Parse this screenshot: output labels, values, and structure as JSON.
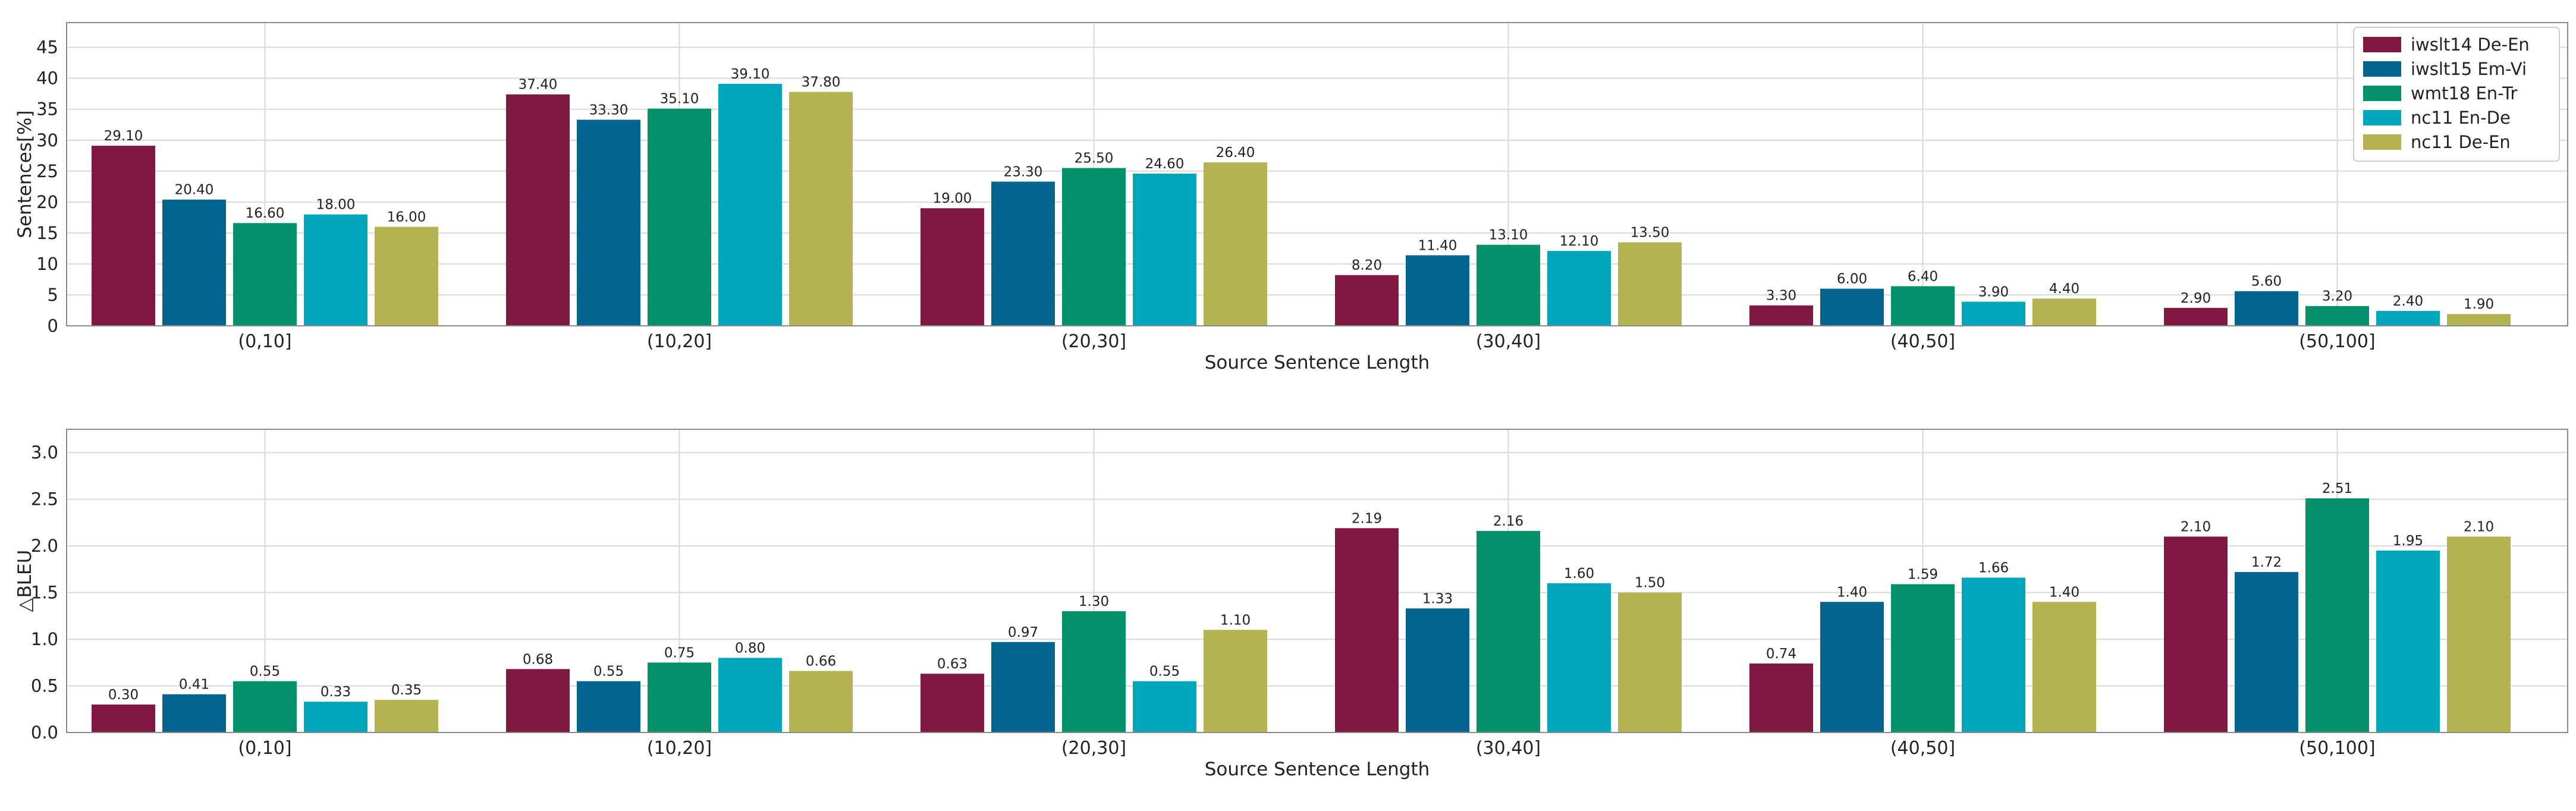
{
  "chart_data": [
    {
      "type": "bar",
      "xlabel": "Source Sentence Length",
      "ylabel": "Sentences[%]",
      "ylim": [
        0,
        49
      ],
      "yticks": [
        "0",
        "5",
        "10",
        "15",
        "20",
        "25",
        "30",
        "35",
        "40",
        "45"
      ],
      "yticks_values": [
        0,
        5,
        10,
        15,
        20,
        25,
        30,
        35,
        40,
        45
      ],
      "grid": true,
      "categories": [
        "(0,10]",
        "(10,20]",
        "(20,30]",
        "(30,40]",
        "(40,50]",
        "(50,100]"
      ],
      "legend_position": "top-right",
      "series": [
        {
          "name": "iwslt14 De-En",
          "color": "#7f1942",
          "values": [
            29.1,
            37.4,
            19.0,
            8.2,
            3.3,
            2.9
          ],
          "labels": [
            "29.10",
            "37.40",
            "19.00",
            "8.20",
            "3.30",
            "2.90"
          ]
        },
        {
          "name": "iwslt15 Em-Vi",
          "color": "#03658f",
          "values": [
            20.4,
            33.3,
            23.3,
            11.4,
            6.0,
            5.6
          ],
          "labels": [
            "20.40",
            "33.30",
            "23.30",
            "11.40",
            "6.00",
            "5.60"
          ]
        },
        {
          "name": "wmt18 En-Tr",
          "color": "#03916b",
          "values": [
            16.6,
            35.1,
            25.5,
            13.1,
            6.4,
            3.2
          ],
          "labels": [
            "16.60",
            "35.10",
            "25.50",
            "13.10",
            "6.40",
            "3.20"
          ]
        },
        {
          "name": "nc11 En-De",
          "color": "#00a6bb",
          "values": [
            18.0,
            39.1,
            24.6,
            12.1,
            3.9,
            2.4
          ],
          "labels": [
            "18.00",
            "39.10",
            "24.60",
            "12.10",
            "3.90",
            "2.40"
          ]
        },
        {
          "name": "nc11 De-En",
          "color": "#b3b351",
          "values": [
            16.0,
            37.8,
            26.4,
            13.5,
            4.4,
            1.9
          ],
          "labels": [
            "16.00",
            "37.80",
            "26.40",
            "13.50",
            "4.40",
            "1.90"
          ]
        }
      ]
    },
    {
      "type": "bar",
      "xlabel": "Source Sentence Length",
      "ylabel": "△BLEU",
      "ylim": [
        0,
        3.25
      ],
      "yticks": [
        "0.0",
        "0.5",
        "1.0",
        "1.5",
        "2.0",
        "2.5",
        "3.0"
      ],
      "yticks_values": [
        0,
        0.5,
        1.0,
        1.5,
        2.0,
        2.5,
        3.0
      ],
      "grid": true,
      "categories": [
        "(0,10]",
        "(10,20]",
        "(20,30]",
        "(30,40]",
        "(40,50]",
        "(50,100]"
      ],
      "series": [
        {
          "name": "iwslt14 De-En",
          "color": "#7f1942",
          "values": [
            0.3,
            0.68,
            0.63,
            2.19,
            0.74,
            2.1
          ],
          "labels": [
            "0.30",
            "0.68",
            "0.63",
            "2.19",
            "0.74",
            "2.10"
          ]
        },
        {
          "name": "iwslt15 Em-Vi",
          "color": "#03658f",
          "values": [
            0.41,
            0.55,
            0.97,
            1.33,
            1.4,
            1.72
          ],
          "labels": [
            "0.41",
            "0.55",
            "0.97",
            "1.33",
            "1.40",
            "1.72"
          ]
        },
        {
          "name": "wmt18 En-Tr",
          "color": "#03916b",
          "values": [
            0.55,
            0.75,
            1.3,
            2.16,
            1.59,
            2.51
          ],
          "labels": [
            "0.55",
            "0.75",
            "1.30",
            "2.16",
            "1.59",
            "2.51"
          ]
        },
        {
          "name": "nc11 En-De",
          "color": "#00a6bb",
          "values": [
            0.33,
            0.8,
            0.55,
            1.6,
            1.66,
            1.95
          ],
          "labels": [
            "0.33",
            "0.80",
            "0.55",
            "1.60",
            "1.66",
            "1.95"
          ]
        },
        {
          "name": "nc11 De-En",
          "color": "#b3b351",
          "values": [
            0.35,
            0.66,
            1.1,
            1.5,
            1.4,
            2.1
          ],
          "labels": [
            "0.35",
            "0.66",
            "1.10",
            "1.50",
            "1.40",
            "2.10"
          ]
        }
      ]
    }
  ]
}
